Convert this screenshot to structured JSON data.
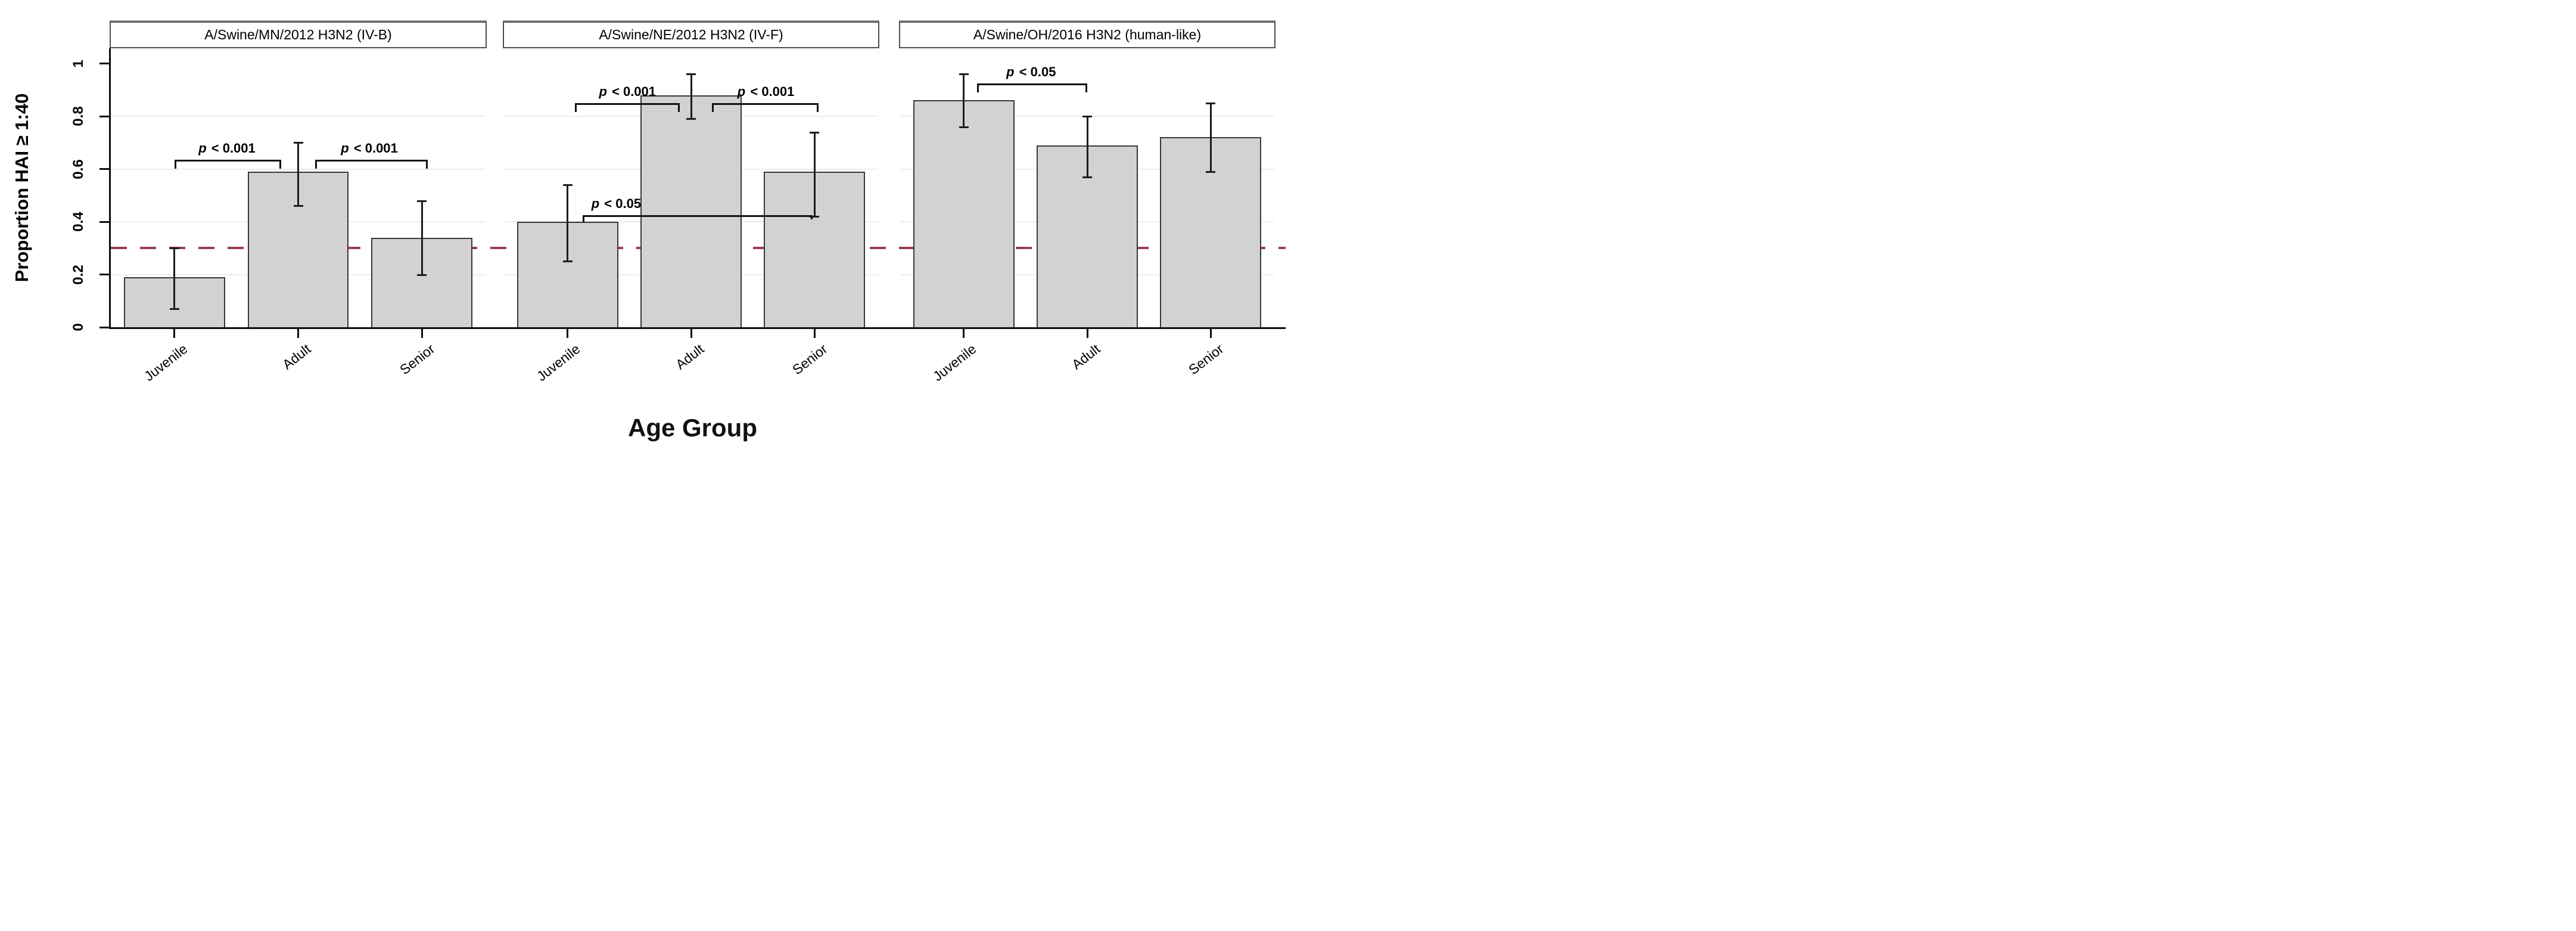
{
  "figure_name": "Proportion HAI seropositive by age group, three swine H3N2 viruses",
  "chart_data": {
    "type": "bar",
    "layout": "three faceted panels, shared y axis, error bars, significance brackets",
    "categories": [
      "Juvenile",
      "Adult",
      "Senior"
    ],
    "xlabel": "Age Group",
    "ylabel": "Proportion HAI ≥ 1:40",
    "ylim": [
      0,
      1
    ],
    "yticks": [
      0,
      0.2,
      0.4,
      0.6,
      0.8,
      1
    ],
    "ytick_labels": [
      "0",
      "0.2",
      "0.4",
      "0.6",
      "0.8",
      "1"
    ],
    "grid_values": [
      0.2,
      0.4,
      0.6,
      0.8
    ],
    "grid_on": true,
    "legend": "none",
    "reference_line": {
      "y": 0.3,
      "style": "dashed",
      "color": "#96424e"
    },
    "bar_fill": "#d2d2d2",
    "bar_border": "#383838",
    "error_bar_color": "#1c1c1c",
    "panels": [
      {
        "title": "A/Swine/MN/2012 H3N2 (IV-B)",
        "values": [
          0.19,
          0.59,
          0.34
        ],
        "ci_low": [
          0.07,
          0.46,
          0.2
        ],
        "ci_high": [
          0.3,
          0.7,
          0.48
        ],
        "annotations": [
          {
            "label": "p < 0.001",
            "between": [
              "Juvenile",
              "Adult"
            ],
            "y": 0.635,
            "x1_pct": 17,
            "x2_pct": 45.5,
            "label_cx_pct": 31,
            "style": "bracket"
          },
          {
            "label": "p < 0.001",
            "between": [
              "Adult",
              "Senior"
            ],
            "y": 0.635,
            "x1_pct": 54.5,
            "x2_pct": 84.5,
            "label_cx_pct": 69,
            "style": "bracket"
          }
        ]
      },
      {
        "title": "A/Swine/NE/2012 H3N2 (IV-F)",
        "values": [
          0.4,
          0.88,
          0.59
        ],
        "ci_low": [
          0.25,
          0.79,
          0.42
        ],
        "ci_high": [
          0.54,
          0.96,
          0.74
        ],
        "annotations": [
          {
            "label": "p < 0.001",
            "between": [
              "Juvenile",
              "Adult"
            ],
            "y": 0.85,
            "x1_pct": 19,
            "x2_pct": 47,
            "label_cx_pct": 33,
            "style": "bracket"
          },
          {
            "label": "p < 0.001",
            "between": [
              "Adult",
              "Senior"
            ],
            "y": 0.85,
            "x1_pct": 55.5,
            "x2_pct": 84,
            "label_cx_pct": 70,
            "style": "bracket"
          },
          {
            "label": "p < 0.05",
            "between": [
              "Juvenile",
              "Senior"
            ],
            "y": 0.425,
            "x1_pct": 21,
            "x2_pct": 82.5,
            "label_cx_pct": 30,
            "style": "line"
          }
        ]
      },
      {
        "title": "A/Swine/OH/2016 H3N2 (human-like)",
        "values": [
          0.86,
          0.69,
          0.72
        ],
        "ci_low": [
          0.76,
          0.57,
          0.59
        ],
        "ci_high": [
          0.96,
          0.8,
          0.85
        ],
        "annotations": [
          {
            "label": "p < 0.05",
            "between": [
              "Juvenile",
              "Adult"
            ],
            "y": 0.925,
            "x1_pct": 20.5,
            "x2_pct": 50,
            "label_cx_pct": 35,
            "style": "bracket"
          }
        ]
      }
    ]
  }
}
